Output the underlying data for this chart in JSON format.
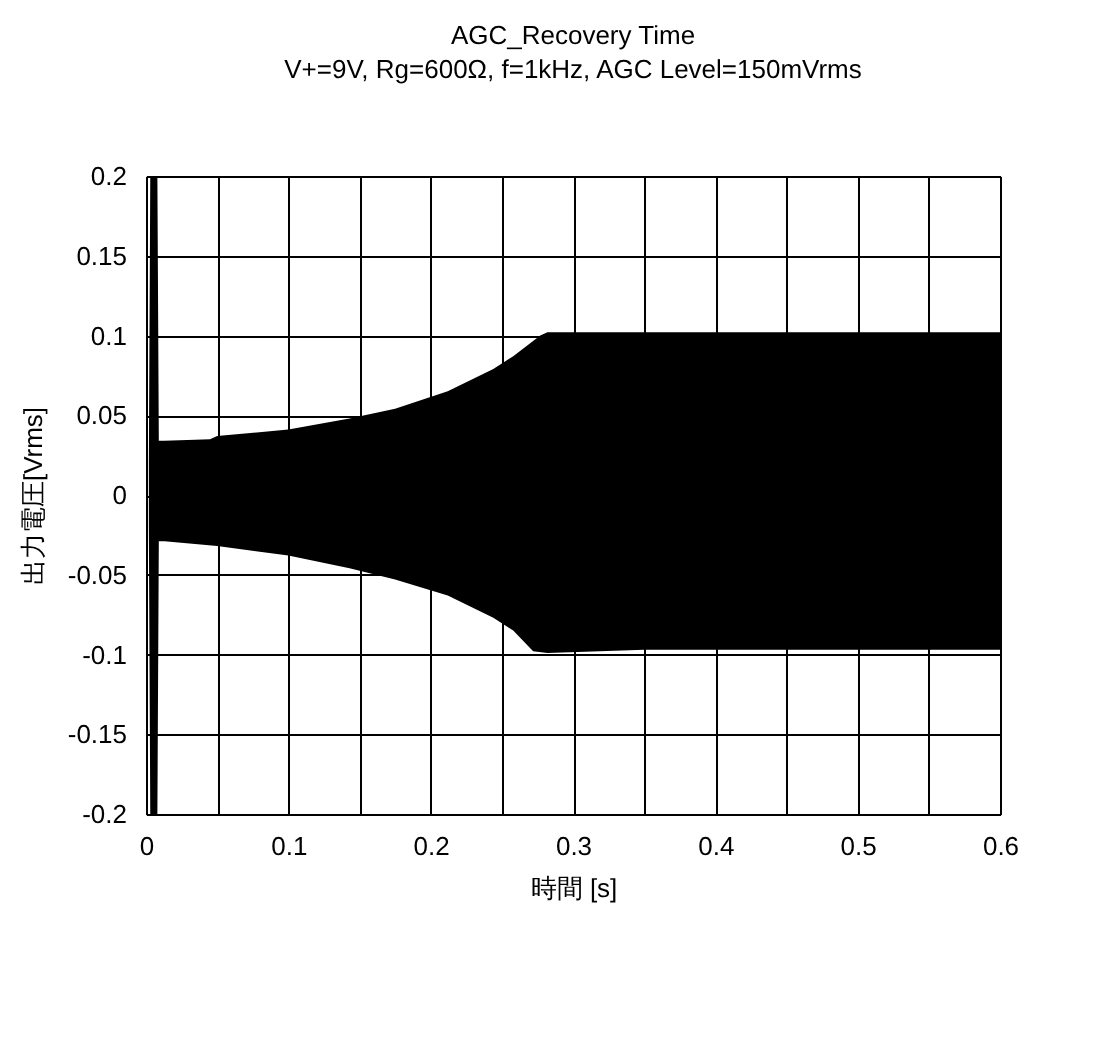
{
  "chart_data": {
    "type": "area",
    "title": "AGC_Recovery Time",
    "subtitle": "V+=9V, Rg=600Ω, f=1kHz, AGC Level=150mVrms",
    "xlabel": "時間 [s]",
    "ylabel": "出力電圧[Vrms]",
    "xlim": [
      0,
      0.6
    ],
    "ylim": [
      -0.2,
      0.2
    ],
    "xticks": [
      0,
      {
        "value": 0.05,
        "label": null
      },
      0.1,
      {
        "value": 0.15,
        "label": null
      },
      0.2,
      {
        "value": 0.25,
        "label": null
      },
      0.3,
      {
        "value": 0.35,
        "label": null
      },
      0.4,
      {
        "value": 0.45,
        "label": null
      },
      0.5,
      {
        "value": 0.55,
        "label": null
      },
      0.6
    ],
    "yticks": [
      -0.2,
      -0.15,
      -0.1,
      -0.05,
      0,
      0.05,
      0.1,
      0.15,
      0.2
    ],
    "grid": true,
    "series": [
      {
        "color": "#000000",
        "x": [
          0.002,
          0.003,
          0.008,
          0.009,
          0.013,
          0.045,
          0.05,
          0.1,
          0.143,
          0.175,
          0.212,
          0.244,
          0.258,
          0.277,
          0.282,
          0.35,
          0.45,
          0.55,
          0.6
        ],
        "values": [
          0.02,
          0.2,
          0.2,
          0.034,
          0.034,
          0.035,
          0.037,
          0.041,
          0.048,
          0.054,
          0.065,
          0.079,
          0.087,
          0.1,
          0.102,
          0.102,
          0.102,
          0.102,
          0.102
        ]
      },
      {
        "color": "#000000",
        "x": [
          0.002,
          0.003,
          0.008,
          0.009,
          0.013,
          0.05,
          0.1,
          0.143,
          0.175,
          0.212,
          0.244,
          0.258,
          0.272,
          0.282,
          0.35,
          0.45,
          0.55,
          0.6
        ],
        "values": [
          -0.02,
          -0.2,
          -0.2,
          -0.029,
          -0.029,
          -0.032,
          -0.038,
          -0.046,
          -0.053,
          -0.063,
          -0.077,
          -0.085,
          -0.098,
          -0.099,
          -0.097,
          -0.097,
          -0.097,
          -0.097
        ]
      }
    ]
  }
}
